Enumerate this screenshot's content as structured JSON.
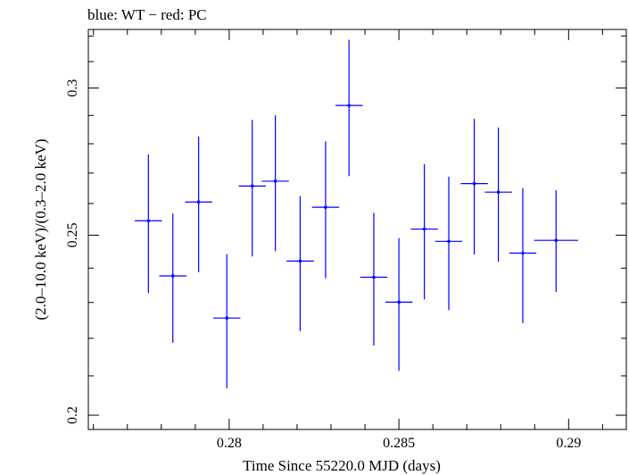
{
  "chart_data": {
    "type": "scatter",
    "title": "blue: WT − red: PC",
    "xlabel": "Time Since 55220.0 MJD (days)",
    "ylabel": "(2.0–10.0 keV)/(0.3–2.0 keV)",
    "xlim": [
      0.27585,
      0.2917
    ],
    "ylim": [
      0.1965,
      0.3226
    ],
    "y_scale": "log",
    "x_ticks": [
      0.28,
      0.285,
      0.29
    ],
    "x_tick_labels": [
      "0.28",
      "0.285",
      "0.29"
    ],
    "y_ticks": [
      0.2,
      0.25,
      0.3
    ],
    "y_tick_labels": [
      "0.2",
      "0.25",
      "0.3"
    ],
    "grid": false,
    "colors": {
      "series": "#0000ff",
      "axis": "#000000"
    },
    "series": [
      {
        "points": [
          {
            "x": 0.27762,
            "xerr": 0.0004,
            "y": 0.2545,
            "ylo": 0.2327,
            "yhi": 0.2763
          },
          {
            "x": 0.27834,
            "xerr": 0.0004,
            "y": 0.2377,
            "ylo": 0.2188,
            "yhi": 0.2568
          },
          {
            "x": 0.2791,
            "xerr": 0.0004,
            "y": 0.2605,
            "ylo": 0.2388,
            "yhi": 0.2825
          },
          {
            "x": 0.27993,
            "xerr": 0.0004,
            "y": 0.2256,
            "ylo": 0.2068,
            "yhi": 0.2442
          },
          {
            "x": 0.28068,
            "xerr": 0.0004,
            "y": 0.2657,
            "ylo": 0.2435,
            "yhi": 0.2884
          },
          {
            "x": 0.28136,
            "xerr": 0.0004,
            "y": 0.2673,
            "ylo": 0.2451,
            "yhi": 0.29
          },
          {
            "x": 0.28209,
            "xerr": 0.0004,
            "y": 0.2421,
            "ylo": 0.222,
            "yhi": 0.2624
          },
          {
            "x": 0.28284,
            "xerr": 0.0004,
            "y": 0.2588,
            "ylo": 0.237,
            "yhi": 0.2808
          },
          {
            "x": 0.28353,
            "xerr": 0.0004,
            "y": 0.2936,
            "ylo": 0.269,
            "yhi": 0.3185
          },
          {
            "x": 0.28426,
            "xerr": 0.0004,
            "y": 0.2373,
            "ylo": 0.218,
            "yhi": 0.257
          },
          {
            "x": 0.285,
            "xerr": 0.0004,
            "y": 0.2301,
            "ylo": 0.2113,
            "yhi": 0.2491
          },
          {
            "x": 0.28575,
            "xerr": 0.0004,
            "y": 0.2519,
            "ylo": 0.2309,
            "yhi": 0.273
          },
          {
            "x": 0.28647,
            "xerr": 0.0004,
            "y": 0.2481,
            "ylo": 0.2278,
            "yhi": 0.2688
          },
          {
            "x": 0.28722,
            "xerr": 0.0004,
            "y": 0.2665,
            "ylo": 0.2441,
            "yhi": 0.2888
          },
          {
            "x": 0.28793,
            "xerr": 0.0004,
            "y": 0.2637,
            "ylo": 0.2419,
            "yhi": 0.2857
          },
          {
            "x": 0.28865,
            "xerr": 0.0004,
            "y": 0.2445,
            "ylo": 0.2242,
            "yhi": 0.265
          },
          {
            "x": 0.28963,
            "xerr": 0.00065,
            "y": 0.2484,
            "ylo": 0.233,
            "yhi": 0.2643
          }
        ]
      }
    ]
  }
}
